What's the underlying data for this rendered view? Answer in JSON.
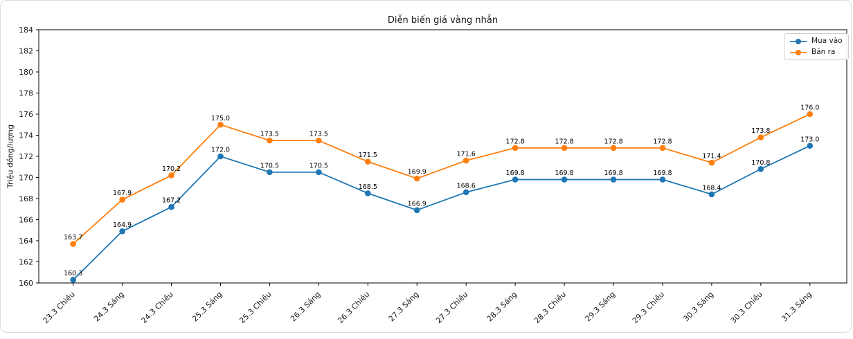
{
  "window": {
    "background": "#ffffff",
    "border_color": "#d9dbde",
    "text_color": "#1a1a1a",
    "spine_color": "#000000"
  },
  "chart_data": {
    "type": "line",
    "title": "Diễn biến giá vàng nhẫn",
    "xlabel": "",
    "ylabel": "Triệu đồng/lượng",
    "ylim": [
      160,
      184
    ],
    "ytick_step": 2,
    "grid": false,
    "legend_position": "upper right",
    "marker": "circle",
    "point_labels": true,
    "point_label_decimals": 1,
    "x_tick_rotation": 45,
    "categories": [
      "23.3 Chiều",
      "24.3 Sáng",
      "24.3 Chiều",
      "25.3 Sáng",
      "25.3 Chiều",
      "26.3 Sáng",
      "26.3 Chiều",
      "27.3 Sáng",
      "27.3 Chiều",
      "28.3 Sáng",
      "28.3 Chiều",
      "29.3 Sáng",
      "29.3 Chiều",
      "30.3 Sáng",
      "30.3 Chiều",
      "31.3 Sáng"
    ],
    "series": [
      {
        "id": "mua-vao",
        "name": "Mua vào",
        "color": "#1f77b4",
        "values": [
          160.3,
          164.9,
          167.2,
          172.0,
          170.5,
          170.5,
          168.5,
          166.9,
          168.6,
          169.8,
          169.8,
          169.8,
          169.8,
          168.4,
          170.8,
          173.0
        ]
      },
      {
        "id": "ban-ra",
        "name": "Bán ra",
        "color": "#ff7f0e",
        "values": [
          163.7,
          167.9,
          170.2,
          175.0,
          173.5,
          173.5,
          171.5,
          169.9,
          171.6,
          172.8,
          172.8,
          172.8,
          172.8,
          171.4,
          173.8,
          176.0
        ]
      }
    ]
  }
}
